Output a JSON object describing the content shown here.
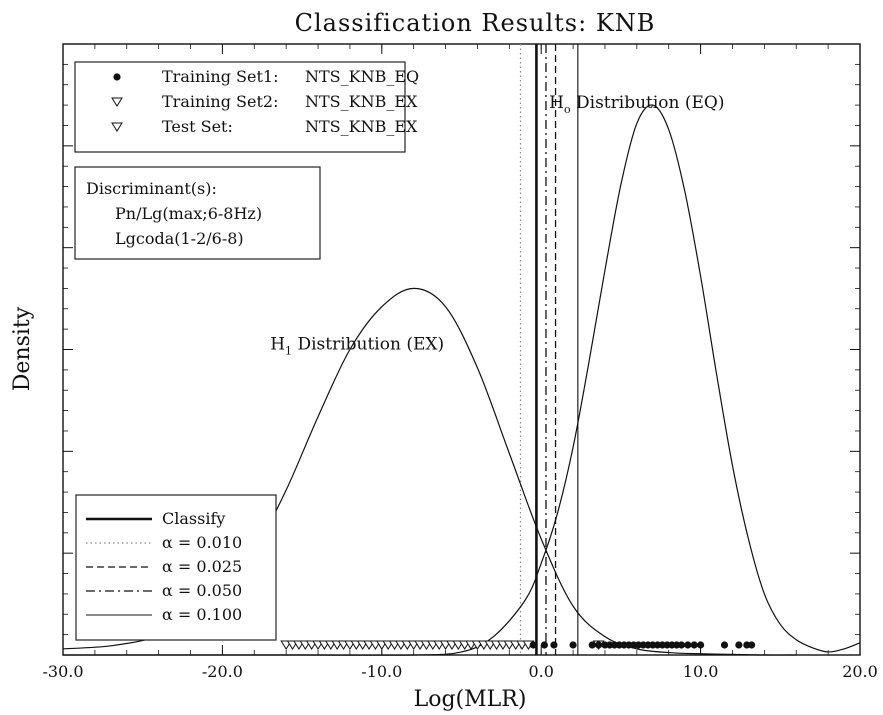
{
  "chart_data": {
    "type": "line",
    "title": "Classification Results: KNB",
    "xlabel": "Log(MLR)",
    "ylabel": "Density",
    "xlim": [
      -30.0,
      20.0
    ],
    "ylim": [
      0,
      1.0
    ],
    "x_ticks": [
      "-30.0",
      "-20.0",
      "-10.0",
      "0.0",
      "10.0",
      "20.0"
    ],
    "x_tick_values": [
      -30,
      -20,
      -10,
      0,
      10,
      20
    ],
    "grid": false,
    "legend_top": {
      "placement": "top-left",
      "entries": [
        {
          "marker": "filled-circle",
          "label": "Training Set1:",
          "value": "NTS_KNB_EQ"
        },
        {
          "marker": "open-triangle-down",
          "label": "Training Set2:",
          "value": "NTS_KNB_EX"
        },
        {
          "marker": "open-triangle-down",
          "label": "Test Set:",
          "value": "NTS_KNB_EX"
        }
      ]
    },
    "discriminants": {
      "title": "Discriminant(s):",
      "items": [
        "Pn/Lg(max;6-8Hz)",
        "Lgcoda(1-2/6-8)"
      ]
    },
    "legend_bottom": {
      "placement": "bottom-left",
      "entries": [
        {
          "style": "thick-solid",
          "label": "Classify"
        },
        {
          "style": "dotted",
          "label": "α = 0.010"
        },
        {
          "style": "dashed",
          "label": "α = 0.025"
        },
        {
          "style": "dash-dot",
          "label": "α = 0.050"
        },
        {
          "style": "thin-solid",
          "label": "α = 0.100"
        }
      ]
    },
    "series": [
      {
        "distribution": "EQ",
        "x": [
          -30,
          -15,
          -8,
          -5,
          -3,
          -1,
          0,
          1,
          2,
          3,
          4,
          5,
          6,
          7,
          8,
          9,
          10,
          11,
          12,
          13,
          14,
          15,
          16,
          17,
          18,
          19,
          20
        ],
        "y": [
          0,
          0,
          0,
          0.005,
          0.03,
          0.09,
          0.15,
          0.23,
          0.34,
          0.48,
          0.63,
          0.77,
          0.87,
          0.9,
          0.86,
          0.76,
          0.62,
          0.46,
          0.31,
          0.19,
          0.1,
          0.05,
          0.025,
          0.012,
          0.005,
          0.01,
          0.02
        ]
      },
      {
        "distribution": "EX",
        "x": [
          -30,
          -27,
          -24,
          -22,
          -20,
          -18,
          -16,
          -14,
          -12,
          -10,
          -8,
          -6,
          -4,
          -2,
          0,
          2,
          4,
          6,
          8,
          10,
          12,
          14,
          16
        ],
        "y": [
          0.01,
          0.015,
          0.03,
          0.05,
          0.1,
          0.17,
          0.27,
          0.39,
          0.5,
          0.57,
          0.6,
          0.57,
          0.47,
          0.33,
          0.19,
          0.08,
          0.03,
          0.01,
          0.004,
          0.002,
          0.001,
          0,
          0
        ]
      }
    ],
    "annotations": [
      {
        "text_main": "H",
        "text_sub": "o",
        "text_rest": " Distribution (EQ)",
        "x": 0.5,
        "y": 0.895
      },
      {
        "text_main": "H",
        "text_sub": "1",
        "text_rest": " Distribution (EX)",
        "x": -17.0,
        "y": 0.5
      }
    ],
    "vertical_lines": [
      {
        "style": "thick-solid",
        "label": "Classify",
        "x": -0.3
      },
      {
        "style": "dotted",
        "label": "α = 0.010",
        "x": -1.3
      },
      {
        "style": "dashed",
        "label": "α = 0.025",
        "x": 0.9
      },
      {
        "style": "dash-dot",
        "label": "α = 0.050",
        "x": 0.3
      },
      {
        "style": "thin-solid",
        "label": "α = 0.100",
        "x": 2.3
      }
    ],
    "points_eq": [
      {
        "marker": "filled-circle",
        "x": [
          -0.5,
          0.2,
          0.8,
          2.0,
          3.2,
          3.6,
          4.0,
          4.3,
          4.6,
          4.9,
          5.2,
          5.5,
          5.8,
          6.1,
          6.4,
          6.7,
          7.0,
          7.3,
          7.6,
          7.9,
          8.2,
          8.5,
          8.8,
          9.2,
          9.6,
          10.0,
          11.5,
          12.4,
          12.9,
          13.2
        ],
        "y": [
          0,
          0,
          0,
          0,
          0,
          0,
          0,
          0,
          0,
          0,
          0,
          0,
          0,
          0,
          0,
          0,
          0,
          0,
          0,
          0,
          0,
          0,
          0,
          0,
          0,
          0,
          0,
          0,
          0,
          0
        ]
      }
    ],
    "points_ex": [
      {
        "marker": "open-triangle-down",
        "x": [
          -16.0,
          -15.6,
          -15.2,
          -14.8,
          -14.4,
          -14.0,
          -13.6,
          -13.2,
          -12.8,
          -12.4,
          -12.0,
          -11.6,
          -11.2,
          -10.8,
          -10.4,
          -10.0,
          -9.6,
          -9.2,
          -8.8,
          -8.4,
          -8.0,
          -7.6,
          -7.2,
          -6.8,
          -6.4,
          -6.0,
          -5.6,
          -5.2,
          -4.8,
          -4.4,
          -4.0,
          -3.6,
          -3.2,
          -2.8,
          -2.4,
          -2.0,
          -1.6,
          -1.2,
          -0.8,
          3.6
        ],
        "y": [
          0,
          0,
          0,
          0,
          0,
          0,
          0,
          0,
          0,
          0,
          0,
          0,
          0,
          0,
          0,
          0,
          0,
          0,
          0,
          0,
          0,
          0,
          0,
          0,
          0,
          0,
          0,
          0,
          0,
          0,
          0,
          0,
          0,
          0,
          0,
          0,
          0,
          0,
          0,
          0
        ]
      }
    ]
  }
}
